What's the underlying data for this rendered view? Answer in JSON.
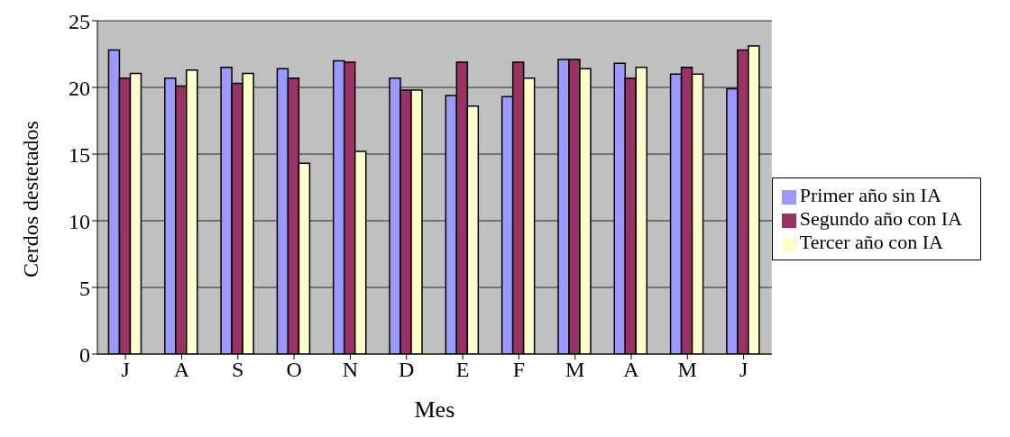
{
  "chart_data": {
    "type": "bar",
    "xlabel": "Mes",
    "ylabel": "Cerdos destetados",
    "categories": [
      "J",
      "A",
      "S",
      "O",
      "N",
      "D",
      "E",
      "F",
      "M",
      "A",
      "M",
      "J"
    ],
    "series": [
      {
        "name": "Primer año sin IA",
        "color": "#9999ff",
        "values": [
          22.8,
          20.7,
          21.5,
          21.4,
          22.0,
          20.7,
          19.4,
          19.3,
          22.1,
          21.8,
          21.0,
          19.9
        ]
      },
      {
        "name": "Segundo año con IA",
        "color": "#993366",
        "values": [
          20.7,
          20.1,
          20.3,
          20.7,
          21.9,
          19.8,
          21.9,
          21.9,
          22.1,
          20.7,
          21.5,
          22.8
        ]
      },
      {
        "name": "Tercer año con IA",
        "color": "#ffffcc",
        "values": [
          21.05,
          21.3,
          21.05,
          14.3,
          15.2,
          19.8,
          18.6,
          20.7,
          21.4,
          21.5,
          21.0,
          23.1
        ]
      }
    ],
    "ylim": [
      0,
      25
    ],
    "yticks": [
      0,
      5,
      10,
      15,
      20,
      25
    ],
    "grid": "y",
    "legend": "right"
  }
}
